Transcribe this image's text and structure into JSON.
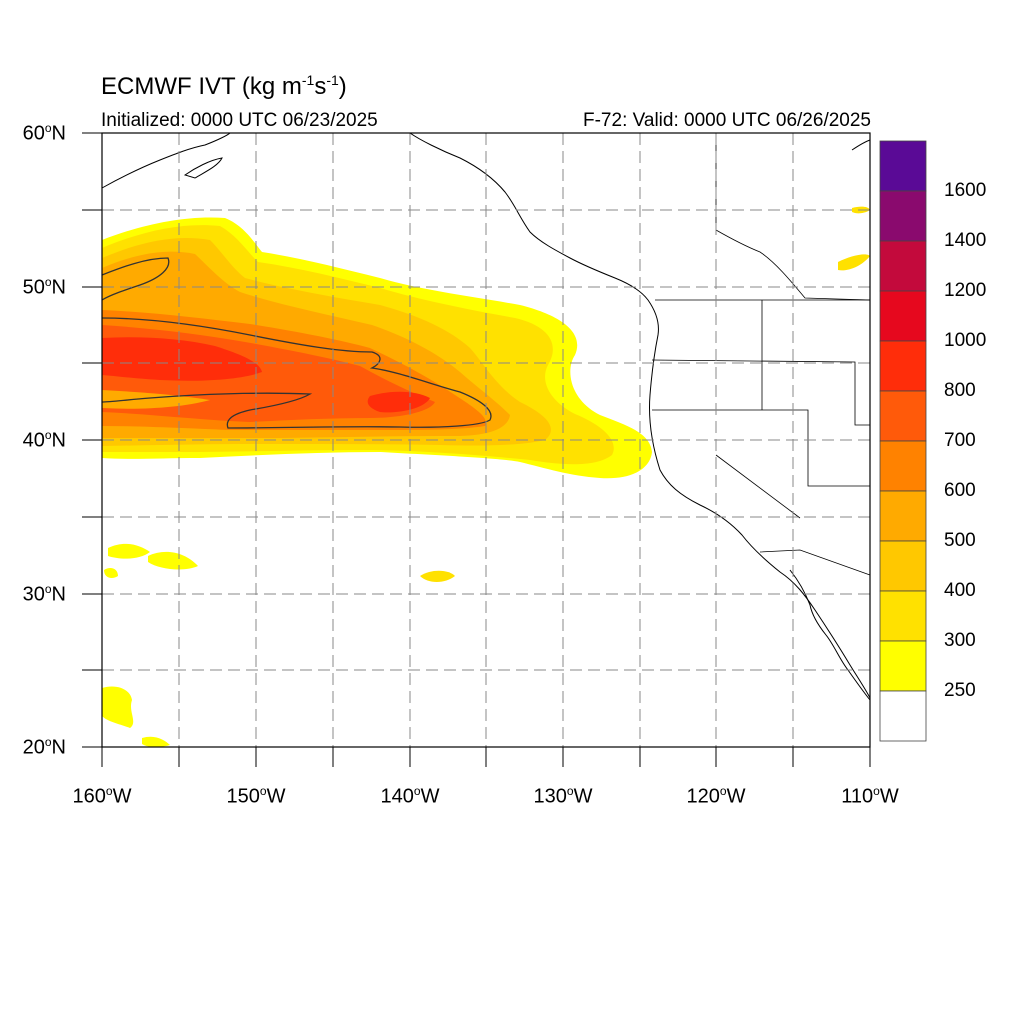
{
  "title": {
    "main": "ECMWF IVT (kg m",
    "exp1": "-1",
    "mid": "s",
    "exp2": "-1",
    "close": ")"
  },
  "init_text": "Initialized: 0000 UTC 06/23/2025",
  "valid_text": "F-72: Valid: 0000 UTC 06/26/2025",
  "lat_labels": [
    {
      "num": "60",
      "deg": "o",
      "hem": "N"
    },
    {
      "num": "50",
      "deg": "o",
      "hem": "N"
    },
    {
      "num": "40",
      "deg": "o",
      "hem": "N"
    },
    {
      "num": "30",
      "deg": "o",
      "hem": "N"
    },
    {
      "num": "20",
      "deg": "o",
      "hem": "N"
    }
  ],
  "lon_labels": [
    {
      "num": "160",
      "deg": "o",
      "hem": "W"
    },
    {
      "num": "150",
      "deg": "o",
      "hem": "W"
    },
    {
      "num": "140",
      "deg": "o",
      "hem": "W"
    },
    {
      "num": "130",
      "deg": "o",
      "hem": "W"
    },
    {
      "num": "120",
      "deg": "o",
      "hem": "W"
    },
    {
      "num": "110",
      "deg": "o",
      "hem": "W"
    }
  ],
  "colorbar": {
    "labels": [
      "1600",
      "1400",
      "1200",
      "1000",
      "800",
      "700",
      "600",
      "500",
      "400",
      "300",
      "250"
    ],
    "colors_top_down": [
      "#5a0a96",
      "#8a0a6e",
      "#c30a3c",
      "#e6081e",
      "#ff2d0a",
      "#ff5a0a",
      "#ff8200",
      "#ffaa00",
      "#ffc800",
      "#ffe100",
      "#ffff00",
      "#ffffff"
    ]
  },
  "map_data": {
    "lon_range": [
      -160,
      -110
    ],
    "lat_range": [
      20,
      60
    ],
    "grid_step_deg": 5,
    "field": "IVT",
    "units": "kg m-1 s-1"
  }
}
